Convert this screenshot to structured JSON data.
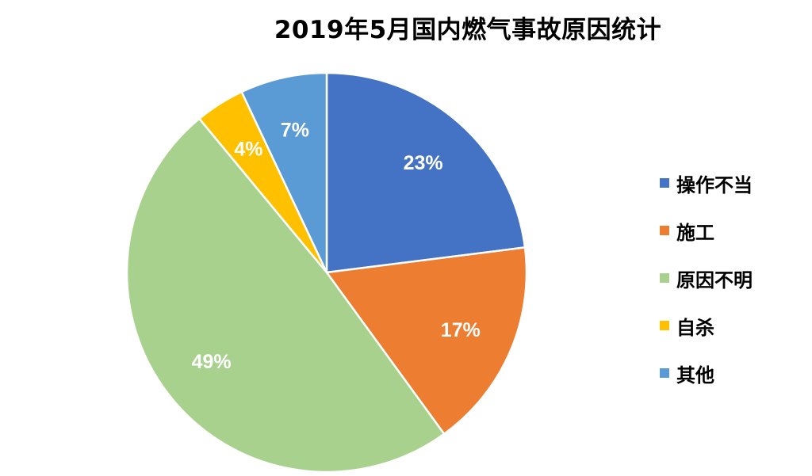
{
  "chart_data": {
    "type": "pie",
    "title": "2019年5月国内燃气事故原因统计",
    "categories": [
      "操作不当",
      "施工",
      "原因不明",
      "自杀",
      "其他"
    ],
    "values": [
      23,
      17,
      49,
      4,
      7
    ],
    "value_labels": [
      "23%",
      "17%",
      "49%",
      "4%",
      "7%"
    ],
    "colors": [
      "#4472C4",
      "#ED7D31",
      "#A9D18E",
      "#FFC000",
      "#5B9BD5"
    ],
    "legend_position": "right",
    "start_angle": "12 o'clock",
    "direction": "clockwise"
  }
}
